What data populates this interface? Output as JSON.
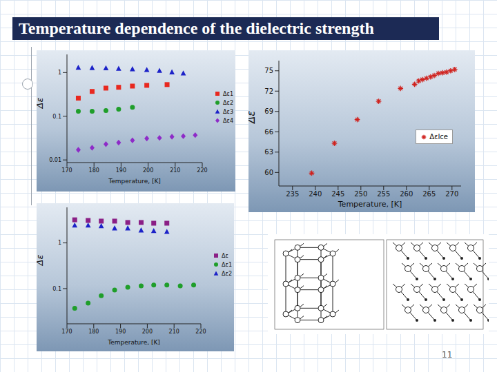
{
  "title": "Temperature dependence of the dielectric strength",
  "page_number": 11,
  "chart_data": [
    {
      "type": "scatter",
      "x_label": "Temperature, [K]",
      "y_label": "Δε",
      "xlim": [
        170,
        220
      ],
      "xticks": [
        170,
        180,
        190,
        200,
        210,
        220
      ],
      "ylim": [
        0.0087,
        2.6
      ],
      "yticks": [
        0.01,
        0.1,
        1
      ],
      "log": "y",
      "grid": false,
      "legend": "right",
      "series": [
        {
          "name": "Δε1",
          "color": "#e8281f",
          "marker": "square",
          "x": [
            174.2,
            179.3,
            184.4,
            189.1,
            194.2,
            199.5,
            207
          ],
          "values": [
            0.26,
            0.37,
            0.44,
            0.46,
            0.49,
            0.51,
            0.53
          ]
        },
        {
          "name": "Δε2",
          "color": "#1f9e2a",
          "marker": "circle",
          "x": [
            174.2,
            179.3,
            184.4,
            189.1,
            194.2
          ],
          "values": [
            0.13,
            0.13,
            0.135,
            0.145,
            0.16
          ]
        },
        {
          "name": "Δε3",
          "color": "#1c22c8",
          "marker": "triangle",
          "x": [
            174.2,
            179.3,
            184.4,
            189.1,
            194.2,
            199.5,
            204.2,
            208.8,
            213
          ],
          "values": [
            1.3,
            1.28,
            1.26,
            1.23,
            1.2,
            1.15,
            1.1,
            1.02,
            0.96
          ]
        },
        {
          "name": "Δε4",
          "color": "#8e2bc8",
          "marker": "diamond",
          "x": [
            174.2,
            179.3,
            184.4,
            189.1,
            194.2,
            199.5,
            204.2,
            208.8,
            213,
            217.4
          ],
          "values": [
            0.017,
            0.019,
            0.023,
            0.025,
            0.028,
            0.031,
            0.032,
            0.034,
            0.035,
            0.037
          ]
        }
      ]
    },
    {
      "type": "scatter",
      "x_label": "Temperature, [K]",
      "y_label": "Δε",
      "xlim": [
        232,
        272
      ],
      "xticks": [
        235,
        240,
        245,
        250,
        255,
        260,
        265,
        270
      ],
      "ylim": [
        58,
        76.5
      ],
      "yticks": [
        60,
        63,
        66,
        69,
        72,
        75
      ],
      "grid": false,
      "legend": "lower right",
      "series": [
        {
          "name": "ΔεIce",
          "color": "#d0201c",
          "marker": "asterisk",
          "x": [
            239.2,
            244.2,
            249.2,
            253.9,
            258.7,
            261.8,
            262.7,
            263.5,
            264.4,
            265.3,
            266.1,
            267,
            267.9,
            268.8,
            269.7,
            270.6
          ],
          "values": [
            59.9,
            64.3,
            67.8,
            70.5,
            72.4,
            73.0,
            73.5,
            73.7,
            73.9,
            74.1,
            74.3,
            74.6,
            74.7,
            74.8,
            75.0,
            75.2
          ]
        }
      ]
    },
    {
      "type": "scatter",
      "x_label": "Temperature, [K]",
      "y_label": "Δε",
      "xlim": [
        170,
        220
      ],
      "xticks": [
        170,
        180,
        190,
        200,
        210,
        220
      ],
      "ylim": [
        0.017,
        6
      ],
      "yticks": [
        0.1,
        1
      ],
      "log": "y",
      "grid": false,
      "legend": "right",
      "series": [
        {
          "name": "Δε",
          "color": "#8b1f86",
          "marker": "square",
          "x": [
            172.9,
            177.9,
            182.8,
            187.8,
            192.7,
            197.7,
            202.4,
            207.3
          ],
          "values": [
            3.2,
            3.1,
            3.0,
            3.0,
            2.8,
            2.8,
            2.7,
            2.7
          ]
        },
        {
          "name": "Δε1",
          "color": "#1f9e2a",
          "marker": "circle",
          "x": [
            172.9,
            177.9,
            182.8,
            187.8,
            192.7,
            197.7,
            202.4,
            207.3,
            212.3,
            217.3
          ],
          "values": [
            0.037,
            0.048,
            0.07,
            0.093,
            0.107,
            0.115,
            0.12,
            0.12,
            0.115,
            0.12
          ]
        },
        {
          "name": "Δε2",
          "color": "#1c22c8",
          "marker": "triangle",
          "x": [
            172.9,
            177.9,
            182.8,
            187.8,
            192.7,
            197.7,
            202.4,
            207.3
          ],
          "values": [
            2.42,
            2.42,
            2.34,
            2.1,
            2.1,
            1.89,
            1.83,
            1.76
          ]
        }
      ]
    }
  ]
}
